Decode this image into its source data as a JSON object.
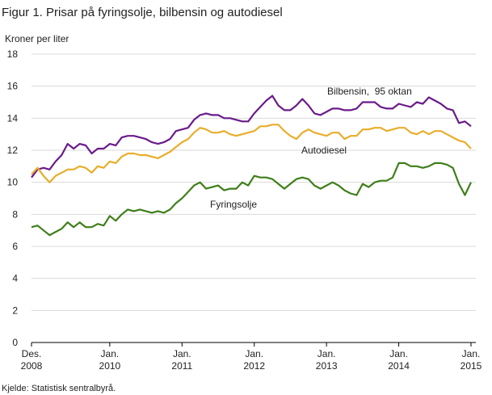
{
  "chart_data": {
    "type": "line",
    "title": "Figur 1. Prisar på fyringsolje, bilbensin og autodiesel",
    "y_label": "Kroner per liter",
    "source": "Kjelde: Statistisk sentralbyrå.",
    "categories": [
      "Des. 2008",
      null,
      null,
      null,
      null,
      null,
      null,
      null,
      null,
      null,
      null,
      null,
      null,
      "Jan. 2010",
      null,
      null,
      null,
      null,
      null,
      null,
      null,
      null,
      null,
      null,
      null,
      "Jan. 2011",
      null,
      null,
      null,
      null,
      null,
      null,
      null,
      null,
      null,
      null,
      null,
      "Jan. 2012",
      null,
      null,
      null,
      null,
      null,
      null,
      null,
      null,
      null,
      null,
      null,
      "Jan. 2013",
      null,
      null,
      null,
      null,
      null,
      null,
      null,
      null,
      null,
      null,
      null,
      "Jan. 2014",
      null,
      null,
      null,
      null,
      null,
      null,
      null,
      null,
      null,
      null,
      null,
      "Jan. 2015"
    ],
    "series": [
      {
        "name": "Bilbensin,  95 oktan",
        "color": "#6a1b8a",
        "values": [
          10.3,
          10.8,
          10.9,
          10.8,
          11.3,
          11.7,
          12.4,
          12.1,
          12.4,
          12.3,
          11.8,
          12.1,
          12.1,
          12.4,
          12.3,
          12.8,
          12.9,
          12.9,
          12.8,
          12.7,
          12.5,
          12.4,
          12.5,
          12.7,
          13.2,
          13.3,
          13.4,
          13.9,
          14.2,
          14.3,
          14.2,
          14.2,
          14.0,
          14.0,
          13.9,
          13.8,
          13.8,
          14.3,
          14.7,
          15.1,
          15.4,
          14.8,
          14.5,
          14.5,
          14.8,
          15.2,
          14.8,
          14.3,
          14.2,
          14.4,
          14.6,
          14.6,
          14.5,
          14.5,
          14.6,
          15.0,
          15.0,
          15.0,
          14.7,
          14.6,
          14.6,
          14.9,
          14.8,
          14.7,
          15.0,
          14.9,
          15.3,
          15.1,
          14.9,
          14.6,
          14.5,
          13.7,
          13.8,
          13.5
        ]
      },
      {
        "name": "Autodiesel",
        "color": "#e8ad2b",
        "values": [
          10.5,
          10.9,
          10.4,
          10.0,
          10.4,
          10.6,
          10.8,
          10.8,
          11.0,
          10.9,
          10.6,
          11.0,
          10.9,
          11.3,
          11.2,
          11.6,
          11.8,
          11.8,
          11.7,
          11.7,
          11.6,
          11.5,
          11.7,
          11.9,
          12.2,
          12.5,
          12.7,
          13.1,
          13.4,
          13.3,
          13.1,
          13.1,
          13.2,
          13.0,
          12.9,
          13.0,
          13.1,
          13.2,
          13.5,
          13.5,
          13.6,
          13.6,
          13.2,
          12.9,
          12.7,
          13.1,
          13.3,
          13.1,
          13.0,
          12.9,
          13.1,
          13.1,
          12.7,
          12.9,
          12.9,
          13.3,
          13.3,
          13.4,
          13.4,
          13.2,
          13.3,
          13.4,
          13.4,
          13.1,
          13.0,
          13.2,
          13.0,
          13.2,
          13.2,
          13.0,
          12.8,
          12.6,
          12.5,
          12.1
        ]
      },
      {
        "name": "Fyringsolje",
        "color": "#3f7f1a",
        "values": [
          7.2,
          7.3,
          7.0,
          6.7,
          6.9,
          7.1,
          7.5,
          7.2,
          7.5,
          7.2,
          7.2,
          7.4,
          7.3,
          7.9,
          7.6,
          8.0,
          8.3,
          8.2,
          8.3,
          8.2,
          8.1,
          8.2,
          8.1,
          8.3,
          8.7,
          9.0,
          9.4,
          9.8,
          10.0,
          9.6,
          9.7,
          9.8,
          9.5,
          9.6,
          9.6,
          10.0,
          9.8,
          10.4,
          10.3,
          10.3,
          10.2,
          9.9,
          9.6,
          9.9,
          10.2,
          10.3,
          10.2,
          9.8,
          9.6,
          9.8,
          10.0,
          9.8,
          9.5,
          9.3,
          9.2,
          9.9,
          9.7,
          10.0,
          10.1,
          10.1,
          10.3,
          11.2,
          11.2,
          11.0,
          11.0,
          10.9,
          11.0,
          11.2,
          11.2,
          11.1,
          10.9,
          9.9,
          9.2,
          10.0
        ]
      }
    ],
    "ylim": [
      0,
      18
    ],
    "yticks": [
      0,
      2,
      4,
      6,
      8,
      10,
      12,
      14,
      16,
      18
    ],
    "grid": true
  }
}
